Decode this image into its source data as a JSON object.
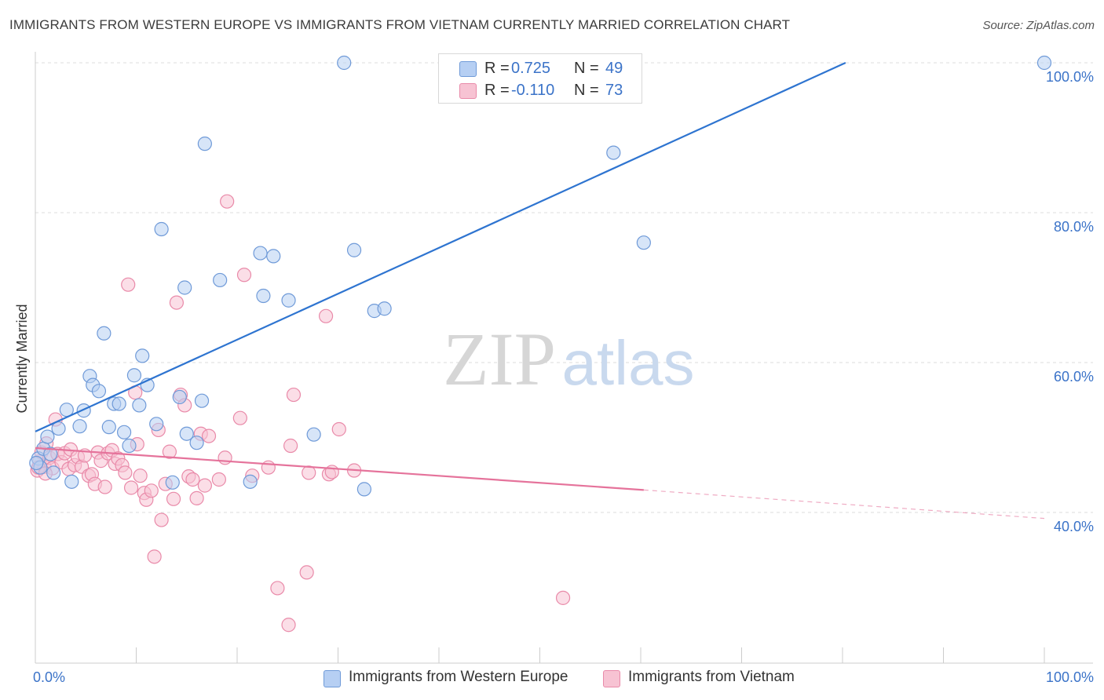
{
  "title": "IMMIGRANTS FROM WESTERN EUROPE VS IMMIGRANTS FROM VIETNAM CURRENTLY MARRIED CORRELATION CHART",
  "source": "Source: ZipAtlas.com",
  "watermark": {
    "zip": "ZIP",
    "atlas": "atlas"
  },
  "legend_top": [
    {
      "r_label": "R =",
      "r_value": "0.725",
      "n_label": "N =",
      "n_value": "49"
    },
    {
      "r_label": "R =",
      "r_value": "-0.110",
      "n_label": "N =",
      "n_value": "73"
    }
  ],
  "legend_bottom": [
    {
      "label": "Immigrants from Western Europe"
    },
    {
      "label": "Immigrants from Vietnam"
    }
  ],
  "colors": {
    "blue_fill": "#b6cff3",
    "blue_stroke": "#6f9ad8",
    "blue_line": "#2e74d0",
    "pink_fill": "#f7c3d3",
    "pink_stroke": "#e98aa9",
    "pink_line": "#e5739b",
    "axis_text": "#3b73c8",
    "grid": "#dddddd"
  },
  "chart_data": {
    "type": "scatter",
    "title": "IMMIGRANTS FROM WESTERN EUROPE VS IMMIGRANTS FROM VIETNAM CURRENTLY MARRIED CORRELATION CHART",
    "xlabel": "",
    "ylabel": "Currently Married",
    "xlim": [
      0,
      100
    ],
    "ylim": [
      20,
      102
    ],
    "x_tick_labels": [
      "0.0%",
      "100.0%"
    ],
    "y_ticks": [
      40,
      60,
      80,
      100
    ],
    "y_tick_labels": [
      "40.0%",
      "60.0%",
      "80.0%",
      "100.0%"
    ],
    "series": [
      {
        "name": "Immigrants from Western Europe",
        "r": 0.725,
        "n": 49,
        "trend": {
          "x": [
            0,
            80.3
          ],
          "y": [
            50.8,
            100
          ],
          "dashed_to": null
        },
        "points": [
          [
            0.3,
            47.2
          ],
          [
            0.5,
            46.0
          ],
          [
            0.8,
            48.5
          ],
          [
            1.2,
            50.1
          ],
          [
            1.5,
            47.8
          ],
          [
            1.8,
            45.3
          ],
          [
            2.3,
            51.2
          ],
          [
            3.1,
            53.7
          ],
          [
            3.6,
            44.1
          ],
          [
            4.4,
            51.5
          ],
          [
            4.8,
            53.6
          ],
          [
            5.4,
            58.2
          ],
          [
            5.7,
            57.0
          ],
          [
            6.3,
            56.2
          ],
          [
            6.8,
            63.9
          ],
          [
            7.3,
            51.4
          ],
          [
            7.8,
            54.5
          ],
          [
            8.3,
            54.5
          ],
          [
            8.8,
            50.7
          ],
          [
            9.3,
            48.9
          ],
          [
            9.8,
            58.3
          ],
          [
            10.3,
            54.3
          ],
          [
            10.6,
            60.9
          ],
          [
            11.1,
            57.0
          ],
          [
            12.0,
            51.8
          ],
          [
            12.5,
            77.8
          ],
          [
            13.6,
            44.0
          ],
          [
            14.3,
            55.4
          ],
          [
            14.8,
            70.0
          ],
          [
            15.0,
            50.5
          ],
          [
            16.0,
            49.3
          ],
          [
            16.5,
            54.9
          ],
          [
            16.8,
            89.2
          ],
          [
            18.3,
            71.0
          ],
          [
            21.3,
            44.1
          ],
          [
            22.3,
            74.6
          ],
          [
            22.6,
            68.9
          ],
          [
            23.6,
            74.2
          ],
          [
            25.1,
            68.3
          ],
          [
            27.6,
            50.4
          ],
          [
            30.6,
            100.0
          ],
          [
            31.6,
            75.0
          ],
          [
            32.6,
            43.1
          ],
          [
            33.6,
            66.9
          ],
          [
            34.6,
            67.2
          ],
          [
            57.3,
            88.0
          ],
          [
            60.3,
            76.0
          ],
          [
            100.0,
            100.0
          ],
          [
            0.1,
            46.6
          ]
        ]
      },
      {
        "name": "Immigrants from Vietnam",
        "r": -0.11,
        "n": 73,
        "trend": {
          "x": [
            0,
            60.3
          ],
          "y": [
            48.6,
            43.0
          ],
          "dashed_to": [
            100,
            39.2
          ]
        },
        "points": [
          [
            0.2,
            45.6
          ],
          [
            0.4,
            46.8
          ],
          [
            0.6,
            48.0
          ],
          [
            0.9,
            46.1
          ],
          [
            1.1,
            49.2
          ],
          [
            1.4,
            47.3
          ],
          [
            1.7,
            45.9
          ],
          [
            2.0,
            52.4
          ],
          [
            2.2,
            47.8
          ],
          [
            2.6,
            46.7
          ],
          [
            2.9,
            47.9
          ],
          [
            3.3,
            45.8
          ],
          [
            3.5,
            48.4
          ],
          [
            3.9,
            46.3
          ],
          [
            4.2,
            47.4
          ],
          [
            4.6,
            46.1
          ],
          [
            4.9,
            47.6
          ],
          [
            5.3,
            44.9
          ],
          [
            5.6,
            45.1
          ],
          [
            5.9,
            43.8
          ],
          [
            6.2,
            48.0
          ],
          [
            6.5,
            46.9
          ],
          [
            6.9,
            43.4
          ],
          [
            7.2,
            47.9
          ],
          [
            7.6,
            48.3
          ],
          [
            7.9,
            46.5
          ],
          [
            8.2,
            47.2
          ],
          [
            8.6,
            46.3
          ],
          [
            8.9,
            45.3
          ],
          [
            9.2,
            70.4
          ],
          [
            9.5,
            43.3
          ],
          [
            9.9,
            56.0
          ],
          [
            10.1,
            49.1
          ],
          [
            10.4,
            44.9
          ],
          [
            10.8,
            42.6
          ],
          [
            11.0,
            41.7
          ],
          [
            11.5,
            42.9
          ],
          [
            11.8,
            34.1
          ],
          [
            12.2,
            51.0
          ],
          [
            12.5,
            39.0
          ],
          [
            12.9,
            43.8
          ],
          [
            13.3,
            48.1
          ],
          [
            13.7,
            41.8
          ],
          [
            14.0,
            68.0
          ],
          [
            14.4,
            55.7
          ],
          [
            14.8,
            54.3
          ],
          [
            15.2,
            44.8
          ],
          [
            15.6,
            44.4
          ],
          [
            16.0,
            41.9
          ],
          [
            16.4,
            50.5
          ],
          [
            16.8,
            43.6
          ],
          [
            17.2,
            50.2
          ],
          [
            18.2,
            44.4
          ],
          [
            18.8,
            47.3
          ],
          [
            19.0,
            81.5
          ],
          [
            20.3,
            52.6
          ],
          [
            20.7,
            71.7
          ],
          [
            21.5,
            44.9
          ],
          [
            23.1,
            46.0
          ],
          [
            24.0,
            29.9
          ],
          [
            25.1,
            25.0
          ],
          [
            25.3,
            48.9
          ],
          [
            25.6,
            55.7
          ],
          [
            26.9,
            32.0
          ],
          [
            27.1,
            45.3
          ],
          [
            28.8,
            66.2
          ],
          [
            29.1,
            45.1
          ],
          [
            29.4,
            45.4
          ],
          [
            30.1,
            51.1
          ],
          [
            31.6,
            45.6
          ],
          [
            52.3,
            28.6
          ],
          [
            0.3,
            46.0
          ],
          [
            1.0,
            45.2
          ]
        ]
      }
    ]
  }
}
